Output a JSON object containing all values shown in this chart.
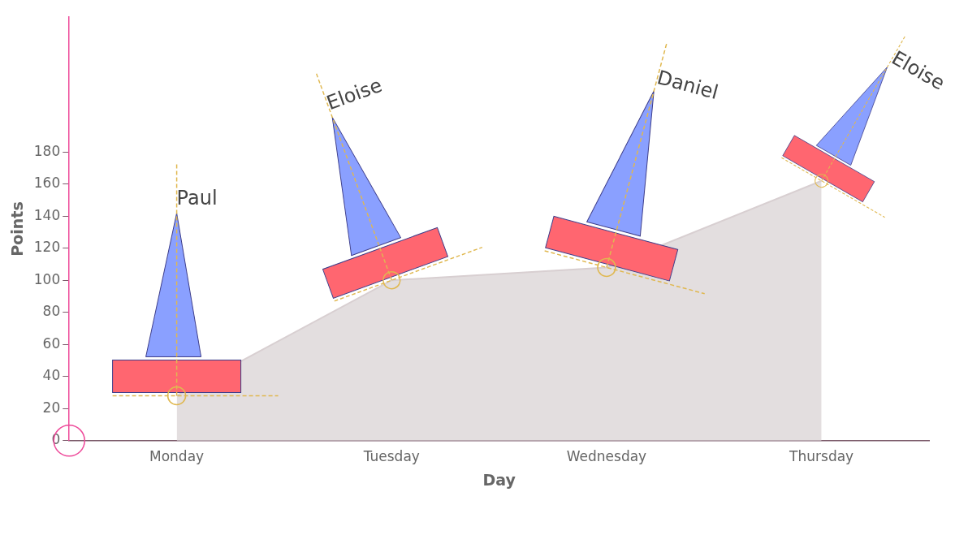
{
  "chart_data": {
    "type": "area",
    "xlabel": "Day",
    "ylabel": "Points",
    "categories": [
      "Monday",
      "Tuesday",
      "Wednesday",
      "Thursday"
    ],
    "series": [
      {
        "color": "#e3dedf",
        "values": [
          28,
          100,
          108,
          162
        ]
      }
    ],
    "ylim": [
      0,
      264
    ],
    "yticks": [
      0,
      20,
      40,
      60,
      80,
      100,
      120,
      140,
      160,
      180
    ],
    "grid": false,
    "legend": false,
    "annotations": [
      {
        "text": "Paul",
        "x": "Monday",
        "y": 28
      },
      {
        "text": "Eloise",
        "x": "Tuesday",
        "y": 100
      },
      {
        "text": "Daniel",
        "x": "Wednesday",
        "y": 108
      },
      {
        "text": "Eloise",
        "x": "Thursday",
        "y": 162
      }
    ]
  }
}
